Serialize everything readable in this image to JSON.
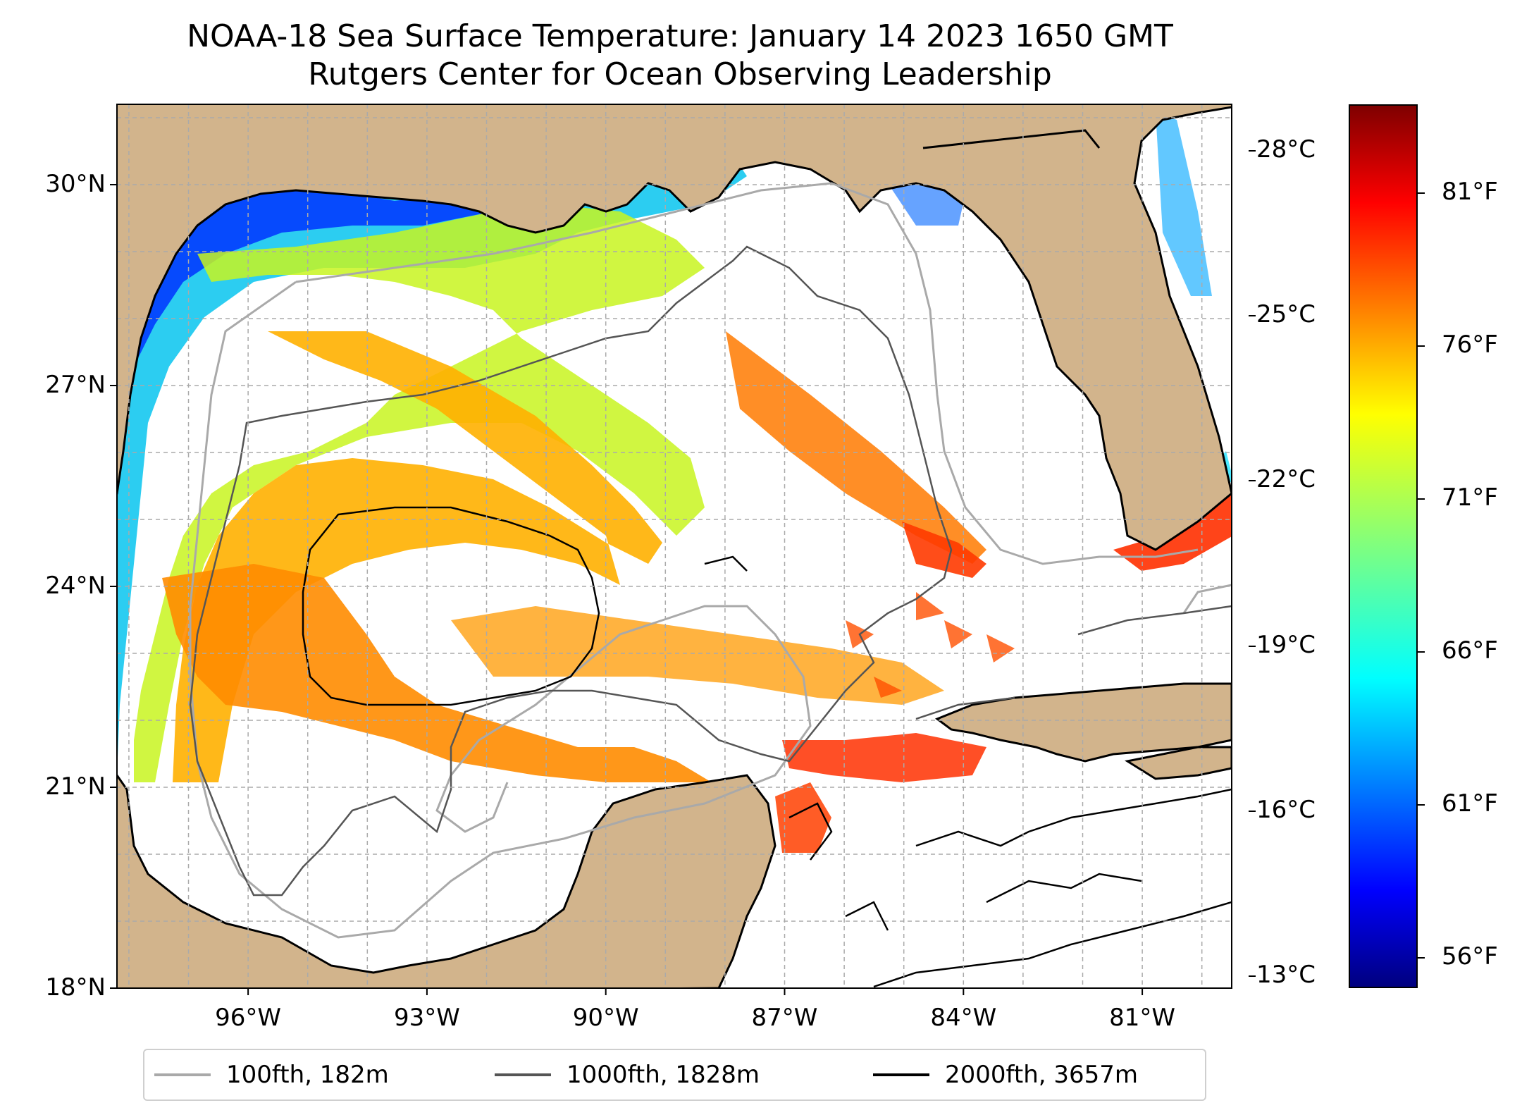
{
  "title": "NOAA-18 Sea Surface Temperature: January 14 2023 1650 GMT",
  "subtitle": "Rutgers Center for Ocean Observing Leadership",
  "map": {
    "lon_range": [
      -98.2,
      -79.5
    ],
    "lat_range": [
      18,
      31.2
    ],
    "land_color": "#d2b48c",
    "grid": true,
    "lat_ticks": [
      {
        "value": 30,
        "label": "30°N"
      },
      {
        "value": 27,
        "label": "27°N"
      },
      {
        "value": 24,
        "label": "24°N"
      },
      {
        "value": 21,
        "label": "21°N"
      },
      {
        "value": 18,
        "label": "18°N"
      }
    ],
    "lon_ticks": [
      {
        "value": -96,
        "label": "96°W"
      },
      {
        "value": -93,
        "label": "93°W"
      },
      {
        "value": -90,
        "label": "90°W"
      },
      {
        "value": -87,
        "label": "87°W"
      },
      {
        "value": -84,
        "label": "84°W"
      },
      {
        "value": -81,
        "label": "81°W"
      }
    ]
  },
  "colorbar": {
    "colormap": "jet",
    "range_c": [
      12.8,
      28.8
    ],
    "celsius_ticks": [
      {
        "value": 28,
        "label": "28°C"
      },
      {
        "value": 25,
        "label": "25°C"
      },
      {
        "value": 22,
        "label": "22°C"
      },
      {
        "value": 19,
        "label": "19°C"
      },
      {
        "value": 16,
        "label": "16°C"
      },
      {
        "value": 13,
        "label": "13°C"
      }
    ],
    "fahrenheit_ticks": [
      {
        "value": 81,
        "label": "81°F"
      },
      {
        "value": 76,
        "label": "76°F"
      },
      {
        "value": 71,
        "label": "71°F"
      },
      {
        "value": 66,
        "label": "66°F"
      },
      {
        "value": 61,
        "label": "61°F"
      },
      {
        "value": 56,
        "label": "56°F"
      }
    ]
  },
  "legend": {
    "placement": "bottom",
    "items": [
      {
        "label": "100fth, 182m",
        "color": "#a9a9a9"
      },
      {
        "label": "1000fth, 1828m",
        "color": "#555555"
      },
      {
        "label": "2000fth, 3657m",
        "color": "#000000"
      }
    ]
  }
}
